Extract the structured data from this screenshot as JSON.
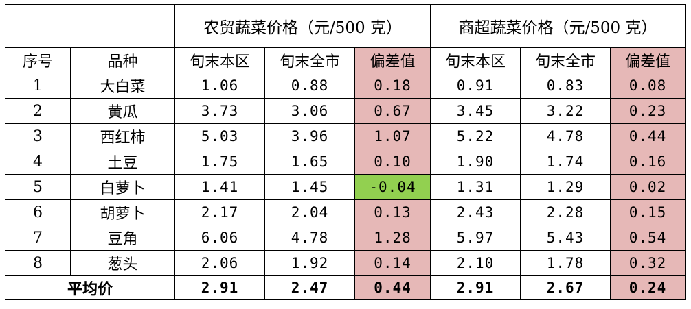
{
  "headers": {
    "group_farm": "农贸蔬菜价格（元/500 克）",
    "group_super": "商超蔬菜价格（元/500 克）",
    "col_index": "序号",
    "col_variety": "品种",
    "col_local": "旬末本区",
    "col_city": "旬末全市",
    "col_dev": "偏差值"
  },
  "rows": [
    {
      "idx": "1",
      "name": "大白菜",
      "farm_local": "1.06",
      "farm_city": "0.88",
      "farm_dev": "0.18",
      "super_local": "0.91",
      "super_city": "0.83",
      "super_dev": "0.08"
    },
    {
      "idx": "2",
      "name": "黄瓜",
      "farm_local": "3.73",
      "farm_city": "3.06",
      "farm_dev": "0.67",
      "super_local": "3.45",
      "super_city": "3.22",
      "super_dev": "0.23"
    },
    {
      "idx": "3",
      "name": "西红柿",
      "farm_local": "5.03",
      "farm_city": "3.96",
      "farm_dev": "1.07",
      "super_local": "5.22",
      "super_city": "4.78",
      "super_dev": "0.44"
    },
    {
      "idx": "4",
      "name": "土豆",
      "farm_local": "1.75",
      "farm_city": "1.65",
      "farm_dev": "0.10",
      "super_local": "1.90",
      "super_city": "1.74",
      "super_dev": "0.16"
    },
    {
      "idx": "5",
      "name": "白萝卜",
      "farm_local": "1.41",
      "farm_city": "1.45",
      "farm_dev": "-0.04",
      "super_local": "1.31",
      "super_city": "1.29",
      "super_dev": "0.02"
    },
    {
      "idx": "6",
      "name": "胡萝卜",
      "farm_local": "2.17",
      "farm_city": "2.04",
      "farm_dev": "0.13",
      "super_local": "2.43",
      "super_city": "2.28",
      "super_dev": "0.15"
    },
    {
      "idx": "7",
      "name": "豆角",
      "farm_local": "6.06",
      "farm_city": "4.78",
      "farm_dev": "1.28",
      "super_local": "5.97",
      "super_city": "5.43",
      "super_dev": "0.54"
    },
    {
      "idx": "8",
      "name": "葱头",
      "farm_local": "2.06",
      "farm_city": "1.92",
      "farm_dev": "0.14",
      "super_local": "2.10",
      "super_city": "1.78",
      "super_dev": "0.32"
    }
  ],
  "average": {
    "label": "平均价",
    "farm_local": "2.91",
    "farm_city": "2.47",
    "farm_dev": "0.44",
    "super_local": "2.91",
    "super_city": "2.67",
    "super_dev": "0.24"
  },
  "colors": {
    "positive_deviation": "#e6b8b7",
    "negative_deviation": "#92d050"
  }
}
